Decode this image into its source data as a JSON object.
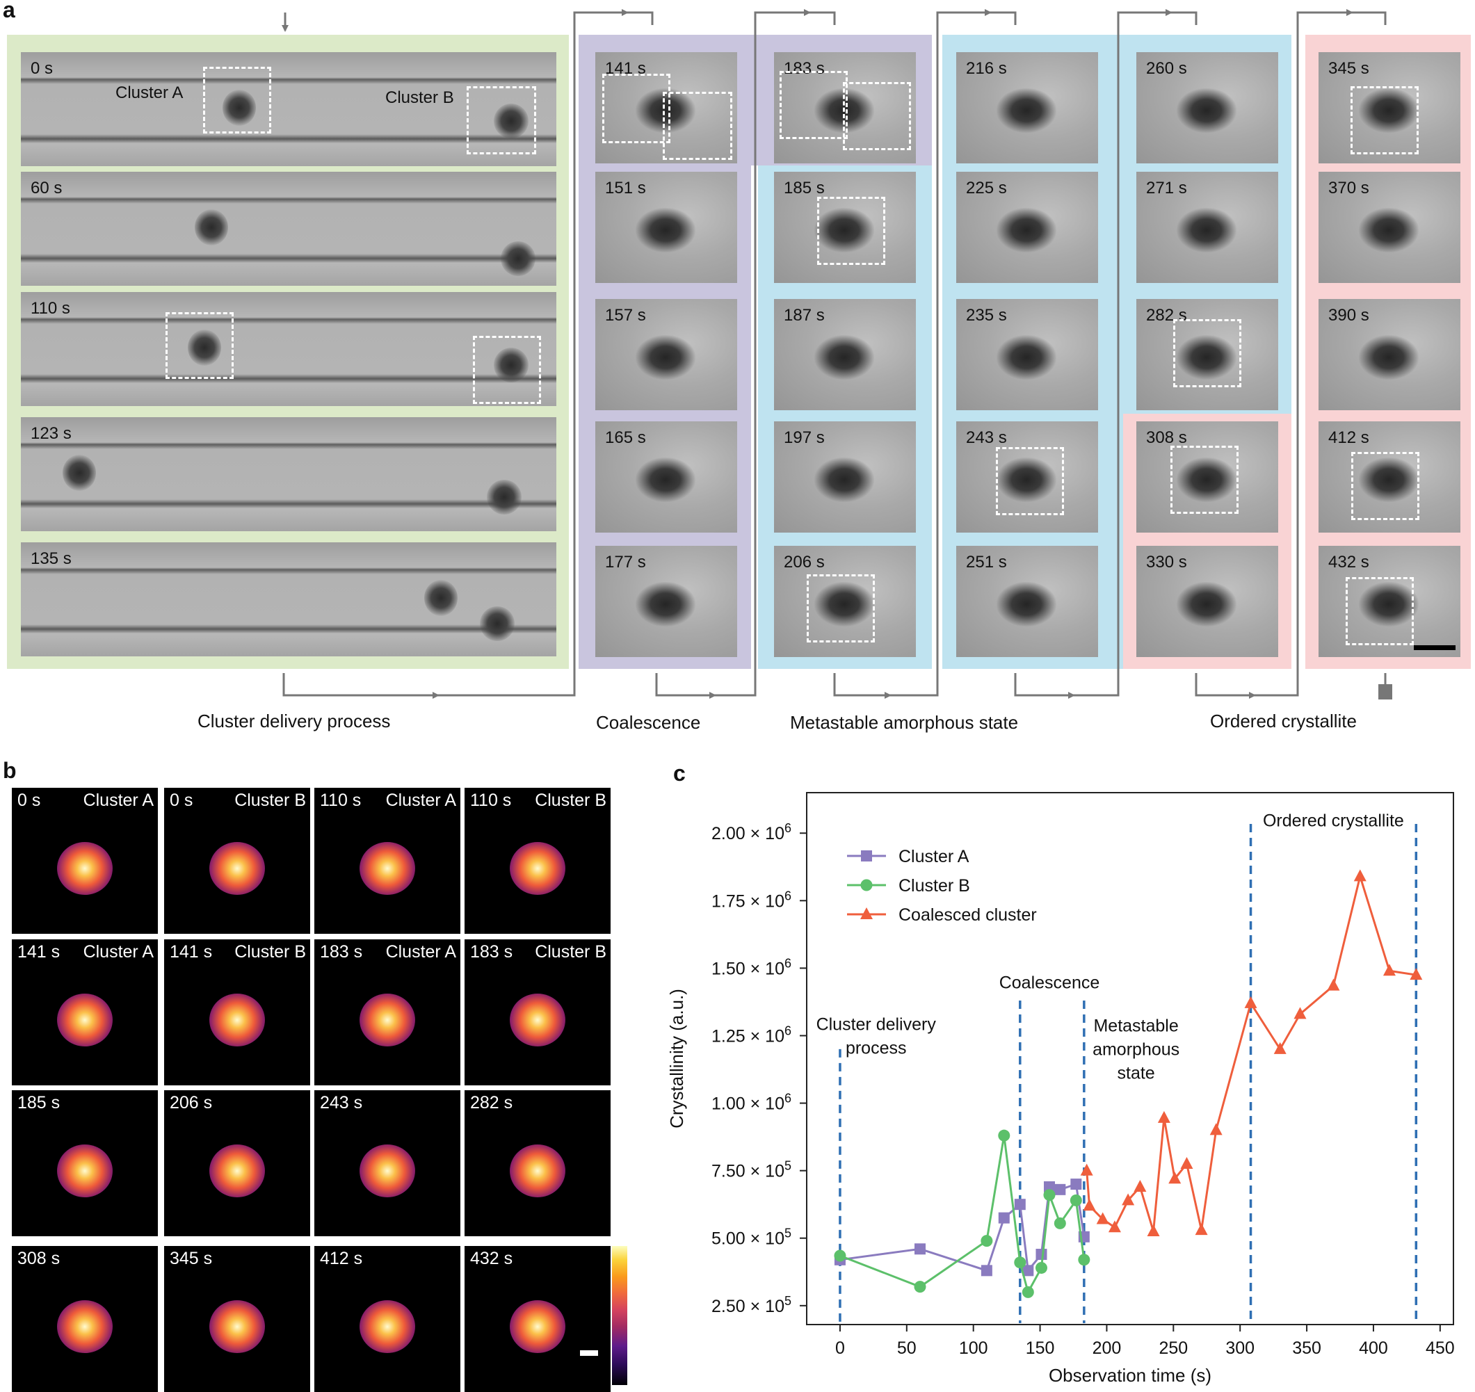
{
  "figure": {
    "panel_a": "a",
    "panel_b": "b",
    "panel_c": "c"
  },
  "panel_a": {
    "cluster_a_label": "Cluster A",
    "cluster_b_label": "Cluster B",
    "phases": [
      "Cluster delivery process",
      "Coalescence",
      "Metastable amorphous state",
      "Ordered crystallite"
    ],
    "phase_colors": {
      "delivery": "#dceac8",
      "coalescence": "#c9c5de",
      "amorphous": "#bfe3f0",
      "crystallite": "#f9d3d4"
    },
    "wide_frames": [
      "0 s",
      "60 s",
      "110 s",
      "123 s",
      "135 s"
    ],
    "col1": [
      "141 s",
      "151 s",
      "157 s",
      "165 s",
      "177 s"
    ],
    "col2": [
      "183 s",
      "185 s",
      "187 s",
      "197 s",
      "206 s"
    ],
    "col3": [
      "216 s",
      "225 s",
      "235 s",
      "243 s",
      "251 s"
    ],
    "col4": [
      "260 s",
      "271 s",
      "282 s",
      "308 s",
      "330 s"
    ],
    "col5": [
      "345 s",
      "370 s",
      "390 s",
      "412 s",
      "432 s"
    ]
  },
  "panel_b": {
    "tiles": [
      {
        "time": "0 s",
        "name": "Cluster A"
      },
      {
        "time": "0 s",
        "name": "Cluster B"
      },
      {
        "time": "110 s",
        "name": "Cluster A"
      },
      {
        "time": "110 s",
        "name": "Cluster B"
      },
      {
        "time": "141 s",
        "name": "Cluster A"
      },
      {
        "time": "141 s",
        "name": "Cluster B"
      },
      {
        "time": "183 s",
        "name": "Cluster A"
      },
      {
        "time": "183 s",
        "name": "Cluster B"
      },
      {
        "time": "185 s",
        "name": ""
      },
      {
        "time": "206 s",
        "name": ""
      },
      {
        "time": "243 s",
        "name": ""
      },
      {
        "time": "282 s",
        "name": ""
      },
      {
        "time": "308 s",
        "name": ""
      },
      {
        "time": "345 s",
        "name": ""
      },
      {
        "time": "412 s",
        "name": ""
      },
      {
        "time": "432 s",
        "name": ""
      }
    ]
  },
  "chart_data": {
    "type": "line",
    "xlabel": "Observation time (s)",
    "ylabel": "Crystallinity (a.u.)",
    "xlim": [
      -25,
      460
    ],
    "ylim": [
      180000,
      2150000
    ],
    "xticks": [
      0,
      50,
      100,
      150,
      200,
      250,
      300,
      350,
      400,
      450
    ],
    "yticks": [
      {
        "value": 250000,
        "mant": "2.50",
        "exp": "5"
      },
      {
        "value": 500000,
        "mant": "5.00",
        "exp": "5"
      },
      {
        "value": 750000,
        "mant": "7.50",
        "exp": "5"
      },
      {
        "value": 1000000,
        "mant": "1.00",
        "exp": "6"
      },
      {
        "value": 1250000,
        "mant": "1.25",
        "exp": "6"
      },
      {
        "value": 1500000,
        "mant": "1.50",
        "exp": "6"
      },
      {
        "value": 1750000,
        "mant": "1.75",
        "exp": "6"
      },
      {
        "value": 2000000,
        "mant": "2.00",
        "exp": "6"
      }
    ],
    "legend_position": "top-left",
    "series": [
      {
        "name": "Cluster A",
        "color": "#8a7bbf",
        "marker": "square",
        "x": [
          0,
          60,
          110,
          123,
          135,
          141,
          151,
          157,
          165,
          177,
          183
        ],
        "y": [
          420000,
          460000,
          380000,
          575000,
          625000,
          380000,
          440000,
          690000,
          680000,
          700000,
          505000
        ]
      },
      {
        "name": "Cluster B",
        "color": "#5cc06a",
        "marker": "circle",
        "x": [
          0,
          60,
          110,
          123,
          135,
          141,
          151,
          157,
          165,
          177,
          183
        ],
        "y": [
          435000,
          320000,
          490000,
          880000,
          410000,
          300000,
          390000,
          660000,
          555000,
          640000,
          420000
        ]
      },
      {
        "name": "Coalesced cluster",
        "color": "#ef5e3c",
        "marker": "triangle",
        "x": [
          185,
          187,
          197,
          206,
          216,
          225,
          235,
          243,
          251,
          260,
          271,
          282,
          308,
          330,
          345,
          370,
          390,
          412,
          432
        ],
        "y": [
          750000,
          620000,
          570000,
          540000,
          640000,
          690000,
          525000,
          945000,
          720000,
          775000,
          530000,
          900000,
          1370000,
          1200000,
          1330000,
          1435000,
          1840000,
          1490000,
          1475000
        ]
      }
    ],
    "phase_lines": [
      0,
      135,
      183,
      308,
      432
    ],
    "annotations": [
      {
        "lines": [
          "Cluster delivery",
          "process"
        ],
        "x": 27,
        "y": 1270000
      },
      {
        "lines": [
          "Coalescence"
        ],
        "x": 157,
        "y": 1425000
      },
      {
        "lines": [
          "Metastable",
          "amorphous",
          "state"
        ],
        "x": 222,
        "y": 1265000
      },
      {
        "lines": [
          "Ordered crystallite"
        ],
        "x": 370,
        "y": 2025000
      }
    ]
  }
}
